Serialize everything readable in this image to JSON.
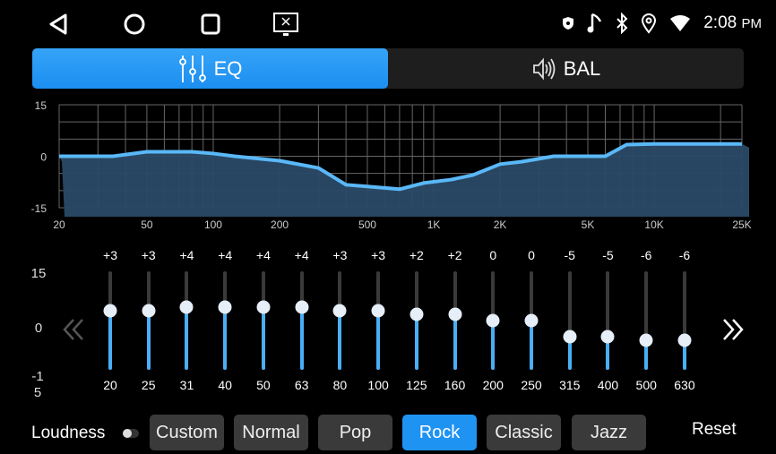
{
  "status_bar": {
    "time": "2:08",
    "ampm": "PM",
    "icons": [
      "shield-icon",
      "music-note-icon",
      "bluetooth-icon",
      "location-icon",
      "wifi-icon"
    ]
  },
  "nav_bar": {
    "icons": [
      "back-icon",
      "home-icon",
      "recents-icon",
      "screen-off-icon"
    ]
  },
  "tabs": [
    {
      "label": "EQ",
      "icon": "sliders-icon",
      "active": true
    },
    {
      "label": "BAL",
      "icon": "speaker-icon",
      "active": false
    }
  ],
  "colors": {
    "accent": "#1f93f2",
    "curve": "#5ab8f8",
    "area": "#2a4a66"
  },
  "chart_data": {
    "type": "area",
    "x_scale": "log",
    "xlim": [
      20,
      25000
    ],
    "ylim": [
      -15,
      15
    ],
    "y_ticks": [
      "15",
      "0",
      "-15"
    ],
    "x_ticks": [
      {
        "v": 20,
        "label": "20"
      },
      {
        "v": 50,
        "label": "50"
      },
      {
        "v": 100,
        "label": "100"
      },
      {
        "v": 200,
        "label": "200"
      },
      {
        "v": 500,
        "label": "500"
      },
      {
        "v": 1000,
        "label": "1K"
      },
      {
        "v": 2000,
        "label": "2K"
      },
      {
        "v": 5000,
        "label": "5K"
      },
      {
        "v": 10000,
        "label": "10K"
      },
      {
        "v": 25000,
        "label": "25K"
      }
    ],
    "grid": true,
    "curve": [
      [
        20,
        0
      ],
      [
        35,
        0
      ],
      [
        50,
        1.3
      ],
      [
        80,
        1.3
      ],
      [
        100,
        0.8
      ],
      [
        125,
        0
      ],
      [
        200,
        -1.3
      ],
      [
        300,
        -3.4
      ],
      [
        400,
        -8.3
      ],
      [
        500,
        -8.8
      ],
      [
        700,
        -9.6
      ],
      [
        900,
        -7.8
      ],
      [
        1200,
        -6.8
      ],
      [
        1500,
        -5.5
      ],
      [
        2000,
        -2.3
      ],
      [
        2500,
        -1.6
      ],
      [
        3500,
        0
      ],
      [
        6000,
        0
      ],
      [
        7500,
        3.4
      ],
      [
        10000,
        3.6
      ],
      [
        25000,
        3.6
      ]
    ]
  },
  "sliders": {
    "scale_labels": [
      "15",
      "0",
      "-15"
    ],
    "range": [
      -15,
      15
    ],
    "bands": [
      {
        "freq": "20",
        "value": 3,
        "label": "+3"
      },
      {
        "freq": "25",
        "value": 3,
        "label": "+3"
      },
      {
        "freq": "31",
        "value": 4,
        "label": "+4"
      },
      {
        "freq": "40",
        "value": 4,
        "label": "+4"
      },
      {
        "freq": "50",
        "value": 4,
        "label": "+4"
      },
      {
        "freq": "63",
        "value": 4,
        "label": "+4"
      },
      {
        "freq": "80",
        "value": 3,
        "label": "+3"
      },
      {
        "freq": "100",
        "value": 3,
        "label": "+3"
      },
      {
        "freq": "125",
        "value": 2,
        "label": "+2"
      },
      {
        "freq": "160",
        "value": 2,
        "label": "+2"
      },
      {
        "freq": "200",
        "value": 0,
        "label": "0"
      },
      {
        "freq": "250",
        "value": 0,
        "label": "0"
      },
      {
        "freq": "315",
        "value": -5,
        "label": "-5"
      },
      {
        "freq": "400",
        "value": -5,
        "label": "-5"
      },
      {
        "freq": "500",
        "value": -6,
        "label": "-6"
      },
      {
        "freq": "630",
        "value": -6,
        "label": "-6"
      }
    ],
    "prev_icon": "double-chevron-left-icon",
    "next_icon": "double-chevron-right-icon"
  },
  "bottom": {
    "loudness_label": "Loudness",
    "loudness_on": false,
    "presets": [
      {
        "label": "Custom"
      },
      {
        "label": "Normal"
      },
      {
        "label": "Pop"
      },
      {
        "label": "Rock",
        "active": true
      },
      {
        "label": "Classic"
      },
      {
        "label": "Jazz"
      }
    ],
    "reset_label": "Reset"
  }
}
